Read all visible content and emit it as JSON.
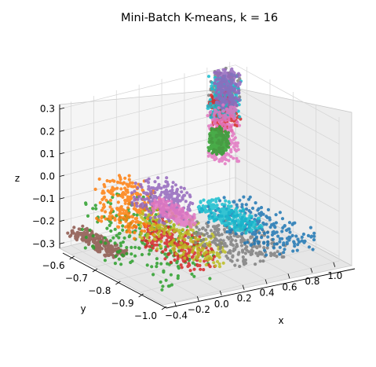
{
  "chart_data": {
    "type": "scatter",
    "projection": "3d",
    "title": "Mini-Batch K-means, k = 16",
    "xlabel": "x",
    "ylabel": "y",
    "zlabel": "z",
    "x_ticks": [
      "−0.4",
      "−0.2",
      "0.0",
      "0.2",
      "0.4",
      "0.6",
      "0.8",
      "1.0"
    ],
    "y_ticks": [
      "−0.6",
      "−0.7",
      "−0.8",
      "−0.9",
      "−1.0"
    ],
    "z_ticks": [
      "0.3",
      "0.2",
      "0.1",
      "0.0",
      "−0.1",
      "−0.2",
      "−0.3"
    ],
    "xlim": [
      -0.5,
      1.05
    ],
    "ylim": [
      -1.0,
      -0.55
    ],
    "zlim": [
      -0.32,
      0.32
    ],
    "grid": true,
    "n_clusters": 16,
    "cluster_colors": [
      "#1f77b4",
      "#ff7f0e",
      "#2ca02c",
      "#d62728",
      "#9467bd",
      "#8c564b",
      "#e377c2",
      "#7f7f7f",
      "#bcbd22",
      "#17becf"
    ],
    "series": [
      {
        "color": "#8c564b",
        "x": [
          -0.45,
          -0.3
        ],
        "y": [
          -0.75,
          -0.55
        ],
        "z": [
          -0.27,
          -0.24
        ]
      },
      {
        "color": "#2ca02c",
        "x": [
          -0.4,
          0.1
        ],
        "y": [
          -0.95,
          -0.55
        ],
        "z": [
          -0.31,
          -0.1
        ]
      },
      {
        "color": "#d62728",
        "x": [
          -0.05,
          0.2
        ],
        "y": [
          -0.9,
          -0.65
        ],
        "z": [
          -0.3,
          -0.2
        ]
      },
      {
        "color": "#ff7f0e",
        "x": [
          -0.2,
          0.1
        ],
        "y": [
          -0.7,
          -0.55
        ],
        "z": [
          -0.25,
          -0.05
        ]
      },
      {
        "color": "#bcbd22",
        "x": [
          0.05,
          0.3
        ],
        "y": [
          -0.9,
          -0.6
        ],
        "z": [
          -0.31,
          -0.18
        ]
      },
      {
        "color": "#9467bd",
        "x": [
          0.1,
          0.4
        ],
        "y": [
          -0.7,
          -0.55
        ],
        "z": [
          -0.22,
          -0.1
        ]
      },
      {
        "color": "#7f7f7f",
        "x": [
          0.3,
          0.7
        ],
        "y": [
          -0.95,
          -0.7
        ],
        "z": [
          -0.3,
          -0.22
        ]
      },
      {
        "color": "#1f77b4",
        "x": [
          0.6,
          1.0
        ],
        "y": [
          -0.95,
          -0.6
        ],
        "z": [
          -0.3,
          -0.22
        ]
      },
      {
        "color": "#17becf",
        "x": [
          0.6,
          0.8
        ],
        "y": [
          -0.8,
          -0.6
        ],
        "z": [
          -0.27,
          -0.22
        ]
      },
      {
        "color": "#e377c2",
        "x": [
          0.3,
          0.4
        ],
        "y": [
          -0.7,
          -0.55
        ],
        "z": [
          -0.25,
          -0.2
        ]
      },
      {
        "color": "#7f7f7f",
        "x": [
          0.8,
          1.0
        ],
        "y": [
          -0.6,
          -0.55
        ],
        "z": [
          0.1,
          0.3
        ]
      },
      {
        "color": "#d62728",
        "x": [
          0.8,
          1.0
        ],
        "y": [
          -0.6,
          -0.55
        ],
        "z": [
          0.05,
          0.2
        ]
      },
      {
        "color": "#17becf",
        "x": [
          0.8,
          1.0
        ],
        "y": [
          -0.6,
          -0.55
        ],
        "z": [
          0.1,
          0.28
        ]
      },
      {
        "color": "#9467bd",
        "x": [
          0.85,
          1.0
        ],
        "y": [
          -0.6,
          -0.55
        ],
        "z": [
          0.15,
          0.3
        ]
      },
      {
        "color": "#e377c2",
        "x": [
          0.8,
          1.0
        ],
        "y": [
          -0.6,
          -0.55
        ],
        "z": [
          -0.1,
          0.15
        ]
      },
      {
        "color": "#2ca02c",
        "x": [
          0.8,
          0.9
        ],
        "y": [
          -0.6,
          -0.55
        ],
        "z": [
          -0.05,
          0.05
        ]
      }
    ]
  }
}
